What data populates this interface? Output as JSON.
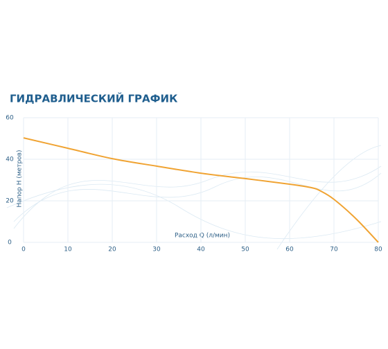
{
  "chart_data": {
    "type": "line",
    "title": "ГИДРАВЛИЧЕСКИЙ ГРАФИК",
    "x_label": "Расход Q (л/мин)",
    "y_label": "Напор Н (метров)",
    "x": [
      0,
      10,
      20,
      30,
      40,
      50,
      60,
      65,
      67,
      70,
      75,
      80
    ],
    "values": [
      50.3,
      45.3,
      40.3,
      36.7,
      33.3,
      30.7,
      28,
      26.3,
      24.7,
      20.7,
      11.3,
      0
    ],
    "color": "#f0a332",
    "xlim": [
      0,
      80
    ],
    "xticks": [
      0,
      10,
      20,
      30,
      40,
      50,
      60,
      70,
      80
    ],
    "ylim": [
      0,
      60
    ],
    "yticks": [
      0,
      20,
      40,
      60
    ],
    "grid": true
  }
}
